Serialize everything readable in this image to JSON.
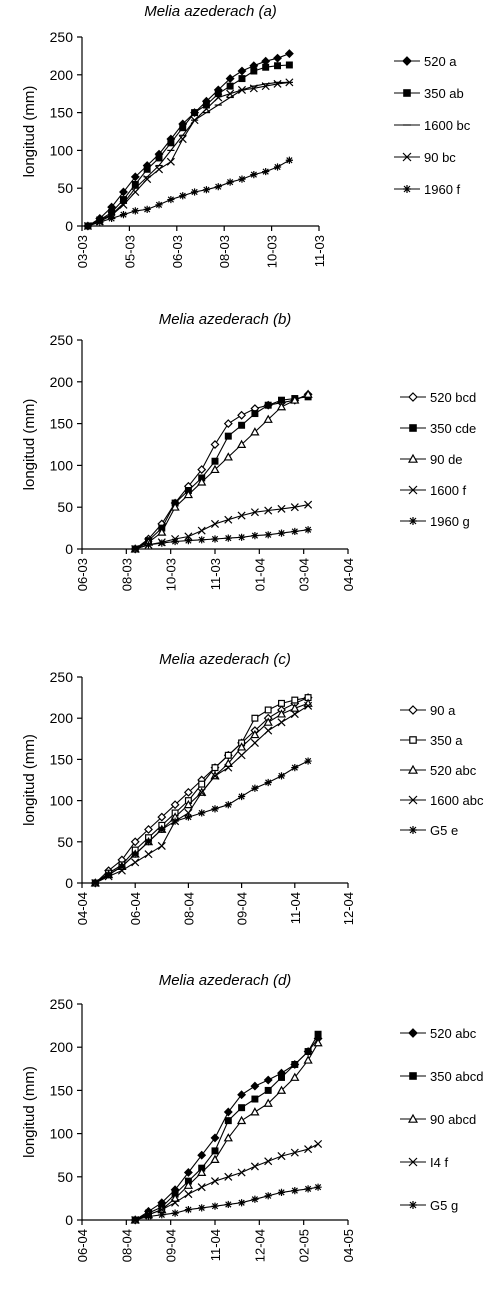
{
  "chart_data": [
    {
      "type": "line",
      "title": "Melia azederach  (a)",
      "ylabel": "longitud (mm)",
      "xlabel": "",
      "ylim": [
        0,
        250
      ],
      "yticks": [
        "0",
        "50",
        "100",
        "150",
        "200",
        "250"
      ],
      "xlim": [
        0,
        8
      ],
      "xticks": [
        "03-03",
        "05-03",
        "06-03",
        "08-03",
        "10-03",
        "11-03"
      ],
      "xtick_pos": [
        0,
        1.6,
        3.2,
        4.8,
        6.4,
        8
      ],
      "legend_position": "right",
      "series": [
        {
          "name": "520 a",
          "marker": "diamond",
          "x": [
            0.2,
            0.6,
            1.0,
            1.4,
            1.8,
            2.2,
            2.6,
            3.0,
            3.4,
            3.8,
            4.2,
            4.6,
            5.0,
            5.4,
            5.8,
            6.2,
            6.6,
            7.0
          ],
          "y": [
            0,
            10,
            25,
            45,
            65,
            80,
            95,
            115,
            135,
            150,
            165,
            180,
            195,
            205,
            212,
            218,
            222,
            228
          ]
        },
        {
          "name": "350 ab",
          "marker": "square",
          "x": [
            0.2,
            0.6,
            1.0,
            1.4,
            1.8,
            2.2,
            2.6,
            3.0,
            3.4,
            3.8,
            4.2,
            4.6,
            5.0,
            5.4,
            5.8,
            6.2,
            6.6,
            7.0
          ],
          "y": [
            0,
            8,
            18,
            35,
            55,
            75,
            90,
            110,
            130,
            150,
            160,
            175,
            185,
            195,
            205,
            210,
            212,
            213
          ]
        },
        {
          "name": "1600 bc",
          "marker": "dash",
          "x": [
            0.2,
            0.6,
            1.0,
            1.4,
            1.8,
            2.2,
            2.6,
            3.0,
            3.4,
            3.8,
            4.2,
            4.6,
            5.0,
            5.4,
            5.8,
            6.2,
            6.6,
            7.0
          ],
          "y": [
            0,
            8,
            15,
            30,
            50,
            65,
            80,
            100,
            120,
            140,
            150,
            160,
            170,
            180,
            185,
            188,
            190,
            190
          ]
        },
        {
          "name": "90 bc",
          "marker": "x",
          "x": [
            0.2,
            0.6,
            1.0,
            1.4,
            1.8,
            2.2,
            2.6,
            3.0,
            3.4,
            3.8,
            4.2,
            4.6,
            5.0,
            5.4,
            5.8,
            6.2,
            6.6,
            7.0
          ],
          "y": [
            0,
            6,
            14,
            28,
            45,
            62,
            75,
            85,
            115,
            140,
            155,
            170,
            175,
            180,
            182,
            185,
            188,
            190
          ]
        },
        {
          "name": "1960 f",
          "marker": "star",
          "x": [
            0.2,
            0.6,
            1.0,
            1.4,
            1.8,
            2.2,
            2.6,
            3.0,
            3.4,
            3.8,
            4.2,
            4.6,
            5.0,
            5.4,
            5.8,
            6.2,
            6.6,
            7.0
          ],
          "y": [
            0,
            5,
            10,
            15,
            20,
            22,
            28,
            35,
            40,
            45,
            48,
            52,
            58,
            62,
            68,
            72,
            78,
            87
          ]
        }
      ]
    },
    {
      "type": "line",
      "title": "Melia azederach  (b)",
      "ylabel": "longitud (mm)",
      "xlabel": "",
      "ylim": [
        0,
        250
      ],
      "yticks": [
        "0",
        "50",
        "100",
        "150",
        "200",
        "250"
      ],
      "xlim": [
        0,
        8
      ],
      "xticks": [
        "06-03",
        "08-03",
        "10-03",
        "11-03",
        "01-04",
        "03-04",
        "04-04"
      ],
      "xtick_pos": [
        0,
        1.333,
        2.667,
        4,
        5.333,
        6.667,
        8
      ],
      "legend_position": "right",
      "series": [
        {
          "name": "520 bcd",
          "marker": "diamond-open",
          "x": [
            1.6,
            2.0,
            2.4,
            2.8,
            3.2,
            3.6,
            4.0,
            4.4,
            4.8,
            5.2,
            5.6,
            6.0,
            6.4,
            6.8
          ],
          "y": [
            0,
            12,
            30,
            55,
            75,
            95,
            125,
            150,
            160,
            168,
            172,
            175,
            178,
            185
          ]
        },
        {
          "name": "350 cde",
          "marker": "square",
          "x": [
            1.6,
            2.0,
            2.4,
            2.8,
            3.2,
            3.6,
            4.0,
            4.4,
            4.8,
            5.2,
            5.6,
            6.0,
            6.4,
            6.8
          ],
          "y": [
            0,
            10,
            25,
            55,
            70,
            85,
            105,
            135,
            148,
            162,
            172,
            178,
            180,
            182
          ]
        },
        {
          "name": "90 de",
          "marker": "triangle-open",
          "x": [
            1.6,
            2.0,
            2.4,
            2.8,
            3.2,
            3.6,
            4.0,
            4.4,
            4.8,
            5.2,
            5.6,
            6.0,
            6.4,
            6.8
          ],
          "y": [
            0,
            8,
            20,
            50,
            65,
            80,
            95,
            110,
            125,
            140,
            155,
            170,
            178,
            185
          ]
        },
        {
          "name": "1600 f",
          "marker": "x",
          "x": [
            1.6,
            2.0,
            2.4,
            2.8,
            3.2,
            3.6,
            4.0,
            4.4,
            4.8,
            5.2,
            5.6,
            6.0,
            6.4,
            6.8
          ],
          "y": [
            0,
            5,
            8,
            12,
            15,
            22,
            30,
            35,
            40,
            44,
            46,
            48,
            50,
            53
          ]
        },
        {
          "name": "1960 g",
          "marker": "star",
          "x": [
            1.6,
            2.0,
            2.4,
            2.8,
            3.2,
            3.6,
            4.0,
            4.4,
            4.8,
            5.2,
            5.6,
            6.0,
            6.4,
            6.8
          ],
          "y": [
            0,
            5,
            7,
            9,
            10,
            11,
            12,
            13,
            14,
            16,
            17,
            19,
            21,
            23
          ]
        }
      ]
    },
    {
      "type": "line",
      "title": "Melia azederach  (c)",
      "ylabel": "longitud (mm)",
      "xlabel": "",
      "ylim": [
        0,
        250
      ],
      "yticks": [
        "0",
        "50",
        "100",
        "150",
        "200",
        "250"
      ],
      "xlim": [
        0,
        8
      ],
      "xticks": [
        "04-04",
        "06-04",
        "08-04",
        "09-04",
        "11-04",
        "12-04"
      ],
      "xtick_pos": [
        0,
        1.6,
        3.2,
        4.8,
        6.4,
        8
      ],
      "legend_position": "right",
      "series": [
        {
          "name": "90 a",
          "marker": "diamond-open",
          "x": [
            0.4,
            0.8,
            1.2,
            1.6,
            2.0,
            2.4,
            2.8,
            3.2,
            3.6,
            4.0,
            4.4,
            4.8,
            5.2,
            5.6,
            6.0,
            6.4,
            6.8
          ],
          "y": [
            0,
            15,
            28,
            50,
            65,
            80,
            95,
            110,
            125,
            140,
            155,
            170,
            185,
            200,
            210,
            218,
            225
          ]
        },
        {
          "name": "350 a",
          "marker": "square-open",
          "x": [
            0.4,
            0.8,
            1.2,
            1.6,
            2.0,
            2.4,
            2.8,
            3.2,
            3.6,
            4.0,
            4.4,
            4.8,
            5.2,
            5.6,
            6.0,
            6.4,
            6.8
          ],
          "y": [
            0,
            12,
            22,
            40,
            55,
            70,
            85,
            100,
            120,
            140,
            155,
            170,
            200,
            210,
            218,
            222,
            225
          ]
        },
        {
          "name": "520 abc",
          "marker": "triangle-open",
          "x": [
            0.4,
            0.8,
            1.2,
            1.6,
            2.0,
            2.4,
            2.8,
            3.2,
            3.6,
            4.0,
            4.4,
            4.8,
            5.2,
            5.6,
            6.0,
            6.4,
            6.8
          ],
          "y": [
            0,
            10,
            20,
            35,
            50,
            65,
            80,
            95,
            110,
            130,
            145,
            165,
            180,
            195,
            205,
            212,
            218
          ]
        },
        {
          "name": "1600 abc",
          "marker": "x",
          "x": [
            0.4,
            0.8,
            1.2,
            1.6,
            2.0,
            2.4,
            2.8,
            3.2,
            3.6,
            4.0,
            4.4,
            4.8,
            5.2,
            5.6,
            6.0,
            6.4,
            6.8
          ],
          "y": [
            0,
            8,
            15,
            25,
            35,
            45,
            75,
            85,
            110,
            130,
            140,
            155,
            170,
            185,
            195,
            205,
            215
          ]
        },
        {
          "name": "G5 e",
          "marker": "star",
          "x": [
            0.4,
            0.8,
            1.2,
            1.6,
            2.0,
            2.4,
            2.8,
            3.2,
            3.6,
            4.0,
            4.4,
            4.8,
            5.2,
            5.6,
            6.0,
            6.4,
            6.8
          ],
          "y": [
            0,
            10,
            20,
            35,
            50,
            65,
            75,
            80,
            85,
            90,
            95,
            105,
            115,
            122,
            130,
            140,
            148
          ]
        }
      ]
    },
    {
      "type": "line",
      "title": "Melia azederach  (d)",
      "ylabel": "longitud (mm)",
      "xlabel": "",
      "ylim": [
        0,
        250
      ],
      "yticks": [
        "0",
        "50",
        "100",
        "150",
        "200",
        "250"
      ],
      "xlim": [
        0,
        8
      ],
      "xticks": [
        "06-04",
        "08-04",
        "09-04",
        "11-04",
        "12-04",
        "02-05",
        "04-05"
      ],
      "xtick_pos": [
        0,
        1.333,
        2.667,
        4,
        5.333,
        6.667,
        8
      ],
      "legend_position": "right",
      "series": [
        {
          "name": "520 abc",
          "marker": "diamond",
          "x": [
            1.6,
            2.0,
            2.4,
            2.8,
            3.2,
            3.6,
            4.0,
            4.4,
            4.8,
            5.2,
            5.6,
            6.0,
            6.4,
            6.8,
            7.1
          ],
          "y": [
            0,
            10,
            20,
            35,
            55,
            75,
            95,
            125,
            145,
            155,
            162,
            170,
            180,
            195,
            210
          ]
        },
        {
          "name": "350 abcd",
          "marker": "square",
          "x": [
            1.6,
            2.0,
            2.4,
            2.8,
            3.2,
            3.6,
            4.0,
            4.4,
            4.8,
            5.2,
            5.6,
            6.0,
            6.4,
            6.8,
            7.1
          ],
          "y": [
            0,
            8,
            15,
            30,
            45,
            60,
            80,
            115,
            130,
            140,
            150,
            165,
            180,
            195,
            215
          ]
        },
        {
          "name": "90 abcd",
          "marker": "triangle-open",
          "x": [
            1.6,
            2.0,
            2.4,
            2.8,
            3.2,
            3.6,
            4.0,
            4.4,
            4.8,
            5.2,
            5.6,
            6.0,
            6.4,
            6.8,
            7.1
          ],
          "y": [
            0,
            6,
            12,
            25,
            40,
            55,
            70,
            95,
            115,
            125,
            135,
            150,
            165,
            185,
            205
          ]
        },
        {
          "name": "I4 f",
          "marker": "x",
          "x": [
            1.6,
            2.0,
            2.4,
            2.8,
            3.2,
            3.6,
            4.0,
            4.4,
            4.8,
            5.2,
            5.6,
            6.0,
            6.4,
            6.8,
            7.1
          ],
          "y": [
            0,
            6,
            12,
            20,
            30,
            38,
            45,
            50,
            55,
            62,
            68,
            74,
            78,
            82,
            88
          ]
        },
        {
          "name": "G5 g",
          "marker": "star",
          "x": [
            1.6,
            2.0,
            2.4,
            2.8,
            3.2,
            3.6,
            4.0,
            4.4,
            4.8,
            5.2,
            5.6,
            6.0,
            6.4,
            6.8,
            7.1
          ],
          "y": [
            0,
            4,
            6,
            8,
            12,
            14,
            16,
            18,
            20,
            24,
            28,
            32,
            34,
            36,
            38
          ]
        }
      ]
    }
  ]
}
